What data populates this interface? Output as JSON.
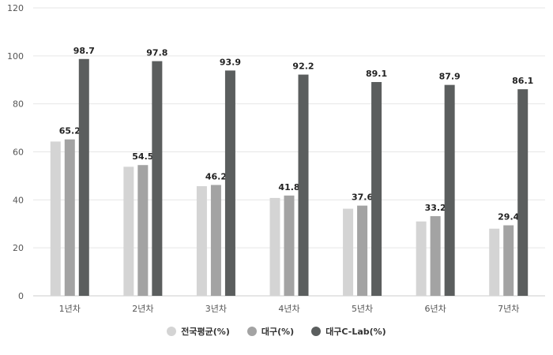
{
  "chart_data": {
    "type": "bar",
    "categories": [
      "1년차",
      "2년차",
      "3년차",
      "4년차",
      "5년차",
      "6년차",
      "7년차"
    ],
    "series": [
      {
        "name": "전국평균(%)",
        "color": "#d4d4d4",
        "values": [
          64.3,
          53.8,
          45.7,
          40.8,
          36.3,
          31.0,
          28.0
        ]
      },
      {
        "name": "대구(%)",
        "color": "#a3a3a3",
        "values": [
          65.2,
          54.5,
          46.2,
          41.8,
          37.6,
          33.2,
          29.4
        ]
      },
      {
        "name": "대구C-Lab(%)",
        "color": "#5b5e5e",
        "values": [
          98.7,
          97.8,
          93.9,
          92.2,
          89.1,
          87.9,
          86.1
        ]
      }
    ],
    "labeled_series": [
      1,
      2
    ],
    "yticks": [
      0,
      20,
      40,
      60,
      80,
      100,
      120
    ],
    "ylim": [
      0,
      120
    ],
    "grid": true,
    "legend_position": "bottom-center"
  }
}
